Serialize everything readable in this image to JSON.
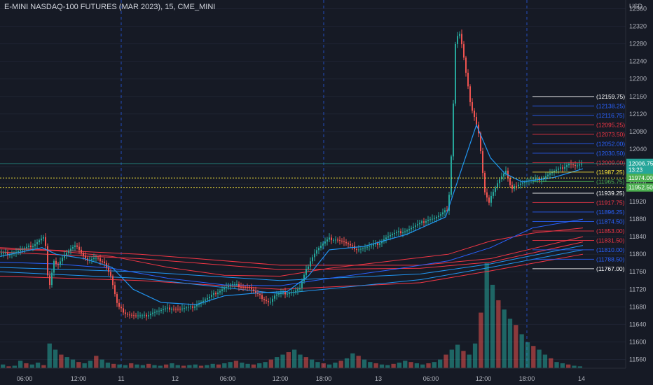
{
  "title": "E-MINI NASDAQ-100 FUTURES (MAR 2023), 15, CME_MINI",
  "chart_data": {
    "type": "candlestick",
    "currency_label": "USD",
    "ylim": [
      11540,
      12380
    ],
    "y_ticks": [
      11560,
      11600,
      11640,
      11680,
      11720,
      11760,
      11800,
      11840,
      11880,
      11920,
      11960,
      12000,
      12040,
      12080,
      12120,
      12160,
      12200,
      12240,
      12280,
      12320,
      12360
    ],
    "x_ticks": [
      "06:00",
      "12:00",
      "11",
      "12",
      "06:00",
      "12:00",
      "18:00",
      "13",
      "06:00",
      "12:00",
      "18:00",
      "14"
    ],
    "last_price": {
      "value": "12006.75",
      "countdown": "13:23"
    },
    "markers": [
      {
        "label": "11974.00",
        "value": 11974.0
      },
      {
        "label": "11952.50",
        "value": 11952.5
      }
    ],
    "level_lines": [
      {
        "label": "(12159.75)",
        "value": 12159.75,
        "color": "#ffffff"
      },
      {
        "label": "(12138.25)",
        "value": 12138.25,
        "color": "#2962ff"
      },
      {
        "label": "(12116.75)",
        "value": 12116.75,
        "color": "#2962ff"
      },
      {
        "label": "(12095.25)",
        "value": 12095.25,
        "color": "#f23645"
      },
      {
        "label": "(12073.50)",
        "value": 12073.5,
        "color": "#f23645"
      },
      {
        "label": "(12052.00)",
        "value": 12052.0,
        "color": "#2962ff"
      },
      {
        "label": "(12030.50)",
        "value": 12030.5,
        "color": "#2962ff"
      },
      {
        "label": "(12009.00)",
        "value": 12009.0,
        "color": "#f23645"
      },
      {
        "label": "(11987.25)",
        "value": 11987.25,
        "color": "#ffeb3b"
      },
      {
        "label": "(11965.75)",
        "value": 11965.75,
        "color": "#4caf50"
      },
      {
        "label": "(11939.25)",
        "value": 11939.25,
        "color": "#ffffff"
      },
      {
        "label": "(11917.75)",
        "value": 11917.75,
        "color": "#f23645"
      },
      {
        "label": "(11896.25)",
        "value": 11896.25,
        "color": "#2962ff"
      },
      {
        "label": "(11874.50)",
        "value": 11874.5,
        "color": "#2962ff"
      },
      {
        "label": "(11853.00)",
        "value": 11853.0,
        "color": "#f23645"
      },
      {
        "label": "(11831.50)",
        "value": 11831.5,
        "color": "#f23645"
      },
      {
        "label": "(11810.00)",
        "value": 11810.0,
        "color": "#2962ff"
      },
      {
        "label": "(11788.50)",
        "value": 11788.5,
        "color": "#2962ff"
      },
      {
        "label": "(11767.00)",
        "value": 11767.0,
        "color": "#ffffff"
      }
    ],
    "price_path": [
      [
        0,
        11800
      ],
      [
        10,
        11800
      ],
      [
        22,
        11805
      ],
      [
        35,
        11812
      ],
      [
        48,
        11822
      ],
      [
        58,
        11835
      ],
      [
        64,
        11840
      ],
      [
        68,
        11750
      ],
      [
        72,
        11720
      ],
      [
        76,
        11790
      ],
      [
        82,
        11775
      ],
      [
        90,
        11795
      ],
      [
        100,
        11810
      ],
      [
        110,
        11820
      ],
      [
        118,
        11800
      ],
      [
        125,
        11785
      ],
      [
        135,
        11790
      ],
      [
        148,
        11785
      ],
      [
        158,
        11750
      ],
      [
        168,
        11680
      ],
      [
        180,
        11665
      ],
      [
        192,
        11660
      ],
      [
        205,
        11658
      ],
      [
        218,
        11668
      ],
      [
        232,
        11672
      ],
      [
        245,
        11678
      ],
      [
        258,
        11675
      ],
      [
        272,
        11678
      ],
      [
        285,
        11690
      ],
      [
        298,
        11700
      ],
      [
        308,
        11712
      ],
      [
        318,
        11722
      ],
      [
        330,
        11730
      ],
      [
        342,
        11728
      ],
      [
        355,
        11725
      ],
      [
        365,
        11710
      ],
      [
        375,
        11700
      ],
      [
        385,
        11690
      ],
      [
        392,
        11705
      ],
      [
        400,
        11710
      ],
      [
        410,
        11712
      ],
      [
        420,
        11715
      ],
      [
        428,
        11722
      ],
      [
        436,
        11760
      ],
      [
        444,
        11790
      ],
      [
        452,
        11810
      ],
      [
        460,
        11822
      ],
      [
        470,
        11835
      ],
      [
        480,
        11835
      ],
      [
        490,
        11828
      ],
      [
        500,
        11818
      ],
      [
        510,
        11812
      ],
      [
        520,
        11815
      ],
      [
        530,
        11818
      ],
      [
        540,
        11825
      ],
      [
        550,
        11838
      ],
      [
        560,
        11845
      ],
      [
        570,
        11850
      ],
      [
        580,
        11855
      ],
      [
        590,
        11862
      ],
      [
        600,
        11870
      ],
      [
        610,
        11880
      ],
      [
        620,
        11882
      ],
      [
        630,
        11890
      ],
      [
        638,
        11902
      ],
      [
        642,
        11950
      ],
      [
        646,
        12100
      ],
      [
        650,
        12280
      ],
      [
        655,
        12310
      ],
      [
        660,
        12270
      ],
      [
        666,
        12200
      ],
      [
        672,
        12140
      ],
      [
        678,
        12110
      ],
      [
        684,
        12070
      ],
      [
        688,
        12000
      ],
      [
        692,
        11940
      ],
      [
        698,
        11915
      ],
      [
        704,
        11945
      ],
      [
        712,
        11970
      ],
      [
        722,
        11990
      ],
      [
        730,
        11945
      ],
      [
        738,
        11960
      ],
      [
        748,
        11965
      ],
      [
        760,
        11968
      ],
      [
        772,
        11972
      ],
      [
        785,
        11985
      ],
      [
        800,
        11995
      ],
      [
        812,
        12008
      ],
      [
        822,
        12000
      ],
      [
        832,
        12006
      ]
    ],
    "ma_fast": [
      [
        0,
        11795
      ],
      [
        60,
        11815
      ],
      [
        80,
        11800
      ],
      [
        120,
        11790
      ],
      [
        160,
        11770
      ],
      [
        190,
        11720
      ],
      [
        230,
        11690
      ],
      [
        280,
        11685
      ],
      [
        320,
        11705
      ],
      [
        370,
        11712
      ],
      [
        410,
        11715
      ],
      [
        440,
        11750
      ],
      [
        470,
        11810
      ],
      [
        520,
        11818
      ],
      [
        580,
        11845
      ],
      [
        636,
        11885
      ],
      [
        660,
        12000
      ],
      [
        680,
        12095
      ],
      [
        700,
        12020
      ],
      [
        720,
        11985
      ],
      [
        745,
        11965
      ],
      [
        790,
        11975
      ],
      [
        832,
        11995
      ]
    ],
    "ma_slow_red": [
      [
        0,
        11812
      ],
      [
        80,
        11808
      ],
      [
        160,
        11795
      ],
      [
        240,
        11770
      ],
      [
        320,
        11752
      ],
      [
        400,
        11750
      ],
      [
        470,
        11768
      ],
      [
        560,
        11785
      ],
      [
        640,
        11800
      ],
      [
        700,
        11830
      ],
      [
        760,
        11848
      ],
      [
        832,
        11860
      ]
    ],
    "ma_slow_blue": [
      [
        0,
        11782
      ],
      [
        80,
        11778
      ],
      [
        160,
        11768
      ],
      [
        240,
        11745
      ],
      [
        320,
        11730
      ],
      [
        400,
        11728
      ],
      [
        470,
        11745
      ],
      [
        560,
        11765
      ],
      [
        640,
        11785
      ],
      [
        700,
        11815
      ],
      [
        760,
        11860
      ],
      [
        832,
        11880
      ]
    ],
    "band_lines_red": [
      [
        [
          0,
          11815
        ],
        [
          200,
          11800
        ],
        [
          400,
          11775
        ],
        [
          600,
          11775
        ],
        [
          700,
          11790
        ],
        [
          832,
          11840
        ]
      ],
      [
        [
          0,
          11805
        ],
        [
          200,
          11790
        ],
        [
          400,
          11765
        ],
        [
          600,
          11768
        ],
        [
          700,
          11782
        ],
        [
          832,
          11828
        ]
      ],
      [
        [
          0,
          11750
        ],
        [
          200,
          11740
        ],
        [
          400,
          11720
        ],
        [
          600,
          11735
        ],
        [
          700,
          11762
        ],
        [
          832,
          11800
        ]
      ]
    ],
    "band_lines_blue": [
      [
        [
          0,
          11770
        ],
        [
          200,
          11760
        ],
        [
          400,
          11740
        ],
        [
          600,
          11755
        ],
        [
          700,
          11778
        ],
        [
          832,
          11820
        ]
      ],
      [
        [
          0,
          11760
        ],
        [
          200,
          11745
        ],
        [
          400,
          11710
        ],
        [
          600,
          11742
        ],
        [
          700,
          11770
        ],
        [
          832,
          11810
        ]
      ]
    ],
    "volume": [
      6,
      3,
      4,
      12,
      8,
      6,
      9,
      5,
      40,
      30,
      22,
      18,
      14,
      10,
      8,
      12,
      20,
      14,
      9,
      7,
      6,
      5,
      8,
      6,
      5,
      7,
      5,
      4,
      6,
      8,
      5,
      4,
      5,
      6,
      4,
      5,
      7,
      6,
      8,
      10,
      12,
      9,
      7,
      6,
      8,
      10,
      14,
      18,
      22,
      26,
      30,
      22,
      18,
      14,
      10,
      8,
      6,
      9,
      12,
      16,
      24,
      20,
      14,
      10,
      8,
      6,
      5,
      7,
      9,
      12,
      10,
      8,
      6,
      8,
      10,
      14,
      22,
      30,
      38,
      28,
      22,
      40,
      90,
      170,
      135,
      110,
      95,
      80,
      70,
      55,
      42,
      36,
      30,
      22,
      16,
      10,
      8,
      6,
      4,
      3
    ]
  }
}
